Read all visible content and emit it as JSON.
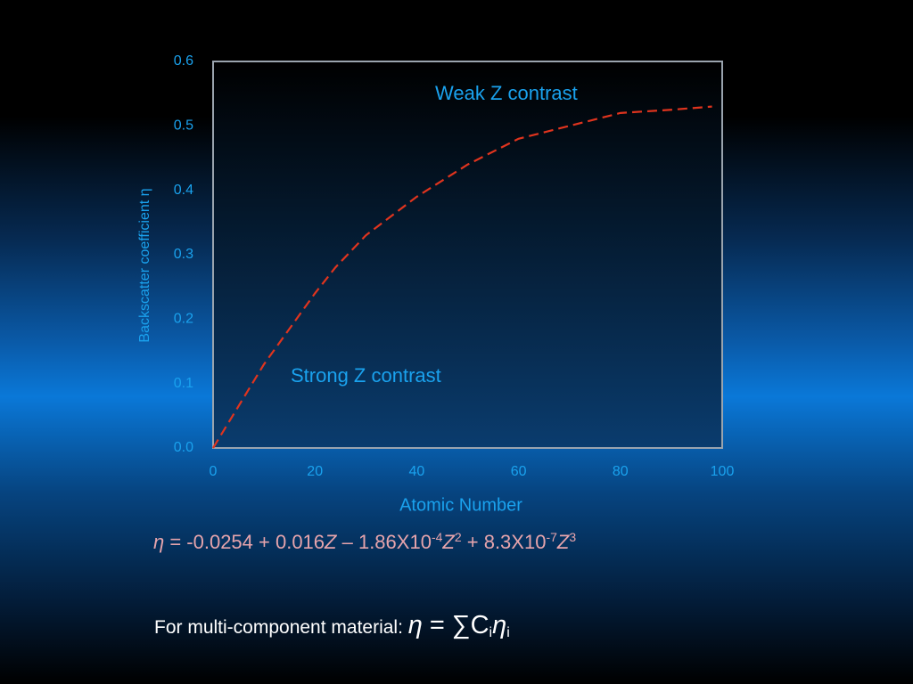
{
  "chart_data": {
    "type": "line",
    "xlabel": "Atomic Number",
    "ylabel": "Backscatter coefficient  η",
    "x": [
      0,
      10,
      20,
      24,
      30,
      40,
      50,
      60,
      70,
      80,
      90,
      98
    ],
    "series": [
      {
        "color": "#e0341e",
        "values": [
          0,
          0.13,
          0.24,
          0.28,
          0.33,
          0.39,
          0.44,
          0.48,
          0.5,
          0.52,
          0.525,
          0.53
        ]
      }
    ],
    "xlim": [
      0,
      100
    ],
    "xticks": [
      0,
      20,
      40,
      60,
      80,
      100
    ],
    "ylim": [
      0,
      0.6
    ],
    "yticks": [
      {
        "value": 0,
        "label": "0.0"
      },
      0.1,
      0.2,
      0.3,
      0.4,
      0.5,
      0.6
    ],
    "annotations": [
      "Weak Z contrast",
      "Strong Z contrast"
    ]
  },
  "equation": [
    "η",
    " = -0.0254 + 0.016",
    "Z",
    " – 1.86X10",
    "-4",
    "Z",
    "2",
    " + 8.3X10",
    "-7",
    "Z",
    "3"
  ],
  "footnote": [
    "For multi-component material: ",
    "η",
    " = ∑C",
    "i",
    "η",
    "i"
  ]
}
